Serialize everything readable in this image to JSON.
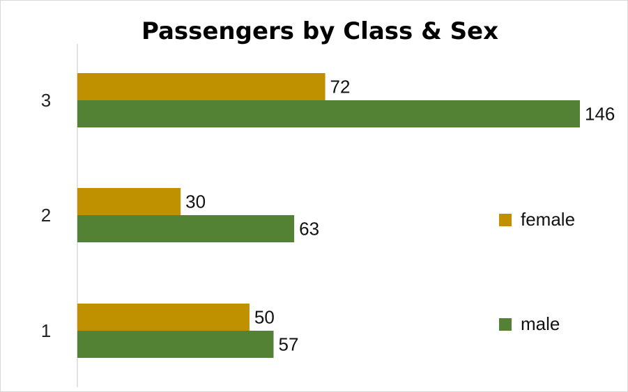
{
  "chart_data": {
    "type": "bar",
    "orientation": "horizontal",
    "title": "Passengers by Class & Sex",
    "categories": [
      "1",
      "2",
      "3"
    ],
    "series": [
      {
        "name": "female",
        "values": [
          50,
          30,
          72
        ],
        "color": "#BF9000"
      },
      {
        "name": "male",
        "values": [
          57,
          63,
          146
        ],
        "color": "#548235"
      }
    ],
    "xlim": [
      0,
      146
    ],
    "grid": false,
    "data_labels": true,
    "legend_position": "right"
  }
}
